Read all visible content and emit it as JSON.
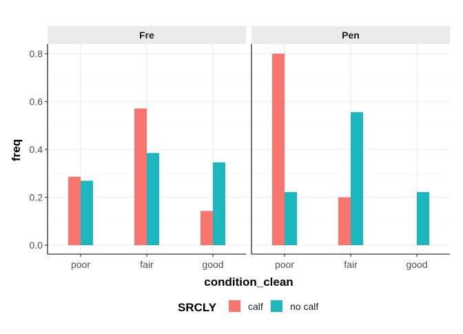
{
  "chart_data": {
    "type": "bar",
    "facets": [
      "Fre",
      "Pen"
    ],
    "categories": [
      "poor",
      "fair",
      "good"
    ],
    "xlabel": "condition_clean",
    "ylabel": "freq",
    "ylim": [
      0,
      0.83
    ],
    "yticks": [
      "0.0",
      "0.2",
      "0.4",
      "0.6",
      "0.8"
    ],
    "grid": true,
    "legend": {
      "title": "SRCLY",
      "position": "bottom",
      "entries": [
        "calf",
        "no calf"
      ]
    },
    "colors": {
      "calf": "#F8766D",
      "no calf": "#1CB7BC"
    },
    "panels": [
      {
        "facet": "Fre",
        "series": [
          {
            "name": "calf",
            "values": [
              0.286,
              0.571,
              0.143
            ]
          },
          {
            "name": "no calf",
            "values": [
              0.269,
              0.385,
              0.346
            ]
          }
        ]
      },
      {
        "facet": "Pen",
        "series": [
          {
            "name": "calf",
            "values": [
              0.8,
              0.2,
              0
            ]
          },
          {
            "name": "no calf",
            "values": [
              0.222,
              0.556,
              0.222
            ]
          }
        ]
      }
    ]
  }
}
